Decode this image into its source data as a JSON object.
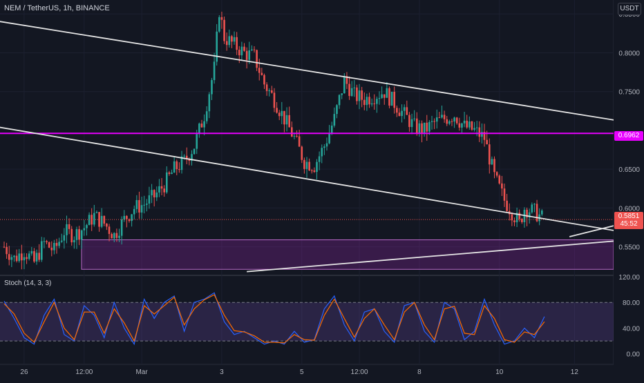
{
  "header": {
    "symbol": "NEM / TetherUS",
    "interval": "1h",
    "exchange": "BINANCE",
    "currency": "USDT"
  },
  "price_pane": {
    "y_ticks": [
      "0.8500",
      "0.8000",
      "0.7500",
      "0.6500",
      "0.6000",
      "0.5500"
    ],
    "resistance_label": "0.6962",
    "last_price_label": "0.5851",
    "countdown_label": "45:52",
    "colors": {
      "up": "#26a69a",
      "down": "#ef5350",
      "resistance": "#e800ff",
      "zone": "#9c27b0",
      "trendline": "#e6e6e6"
    }
  },
  "stoch_pane": {
    "title": "Stoch (14, 3, 3)",
    "y_ticks": [
      "120.00",
      "80.00",
      "40.00",
      "0.00"
    ],
    "colors": {
      "k": "#2962ff",
      "d": "#ff6d00",
      "band": "#7e57c2"
    }
  },
  "x_axis": {
    "labels": [
      "26",
      "12:00",
      "Mar",
      "3",
      "5",
      "12:00",
      "8",
      "10",
      "12"
    ]
  },
  "chart_data": [
    {
      "type": "candlestick",
      "title": "NEM / TetherUS, 1h, BINANCE",
      "y_unit": "USDT",
      "ylim": [
        0.515,
        0.868
      ],
      "x_tick_labels": [
        "26",
        "12:00",
        "Mar",
        "3",
        "5",
        "12:00",
        "8",
        "10",
        "12"
      ],
      "y_tick_labels": [
        "0.8500",
        "0.8000",
        "0.7500",
        "0.6500",
        "0.6000",
        "0.5500"
      ],
      "close_path": [
        [
          0.0,
          0.55
        ],
        [
          4.0,
          0.535
        ],
        [
          8.0,
          0.545
        ],
        [
          12.0,
          0.53
        ],
        [
          16.0,
          0.555
        ],
        [
          20.0,
          0.545
        ],
        [
          24.0,
          0.57
        ],
        [
          28.0,
          0.565
        ],
        [
          32.0,
          0.575
        ],
        [
          36.0,
          0.59
        ],
        [
          40.0,
          0.58
        ],
        [
          44.0,
          0.565
        ],
        [
          48.0,
          0.585
        ],
        [
          52.0,
          0.6
        ],
        [
          56.0,
          0.605
        ],
        [
          60.0,
          0.615
        ],
        [
          64.0,
          0.63
        ],
        [
          68.0,
          0.65
        ],
        [
          72.0,
          0.66
        ],
        [
          76.0,
          0.68
        ],
        [
          80.0,
          0.72
        ],
        [
          84.0,
          0.78
        ],
        [
          86.0,
          0.855
        ],
        [
          88.0,
          0.82
        ],
        [
          92.0,
          0.81
        ],
        [
          96.0,
          0.8
        ],
        [
          100.0,
          0.795
        ],
        [
          104.0,
          0.76
        ],
        [
          108.0,
          0.74
        ],
        [
          112.0,
          0.715
        ],
        [
          116.0,
          0.69
        ],
        [
          120.0,
          0.66
        ],
        [
          124.0,
          0.655
        ],
        [
          128.0,
          0.68
        ],
        [
          132.0,
          0.715
        ],
        [
          136.0,
          0.765
        ],
        [
          140.0,
          0.745
        ],
        [
          144.0,
          0.74
        ],
        [
          148.0,
          0.745
        ],
        [
          152.0,
          0.75
        ],
        [
          156.0,
          0.735
        ],
        [
          160.0,
          0.72
        ],
        [
          164.0,
          0.705
        ],
        [
          168.0,
          0.7
        ],
        [
          172.0,
          0.71
        ],
        [
          176.0,
          0.715
        ],
        [
          180.0,
          0.72
        ],
        [
          184.0,
          0.705
        ],
        [
          188.0,
          0.7
        ],
        [
          192.0,
          0.69
        ],
        [
          196.0,
          0.64
        ],
        [
          200.0,
          0.61
        ],
        [
          204.0,
          0.59
        ],
        [
          206.0,
          0.58
        ],
        [
          208.0,
          0.6
        ],
        [
          212.0,
          0.595
        ],
        [
          216.0,
          0.585
        ]
      ],
      "candle_count": 216,
      "annotations": {
        "horizontal_resistance": 0.6962,
        "last_price": 0.5851,
        "demand_zone": [
          0.521,
          0.559
        ],
        "trendlines": [
          {
            "name": "upper channel",
            "from": [
              -34,
              0.857
            ],
            "to": [
              291,
              0.689
            ]
          },
          {
            "name": "lower channel",
            "from": [
              -61,
              0.736
            ],
            "to": [
              290,
              0.546
            ]
          },
          {
            "name": "rising support",
            "from": [
              97,
              0.518
            ],
            "to": [
              291,
              0.57
            ]
          },
          {
            "name": "breakout ray",
            "from": [
              226,
              0.563
            ],
            "to": [
              290,
              0.614
            ]
          }
        ]
      }
    },
    {
      "type": "line",
      "title": "Stoch (14, 3, 3)",
      "ylim": [
        -10,
        120
      ],
      "bands": [
        20,
        80
      ],
      "series": [
        {
          "name": "%K",
          "x": [
            0,
            4,
            8,
            12,
            16,
            20,
            24,
            28,
            32,
            36,
            40,
            44,
            48,
            52,
            56,
            60,
            64,
            68,
            72,
            76,
            80,
            84,
            88,
            92,
            96,
            100,
            104,
            108,
            112,
            116,
            120,
            124,
            128,
            132,
            136,
            140,
            144,
            148,
            152,
            156,
            160,
            164,
            168,
            172,
            176,
            180,
            184,
            188,
            192,
            196,
            200,
            204,
            208,
            212,
            216
          ],
          "values": [
            82,
            55,
            25,
            15,
            60,
            85,
            30,
            20,
            75,
            60,
            25,
            80,
            40,
            15,
            85,
            55,
            80,
            90,
            35,
            80,
            85,
            95,
            50,
            30,
            35,
            25,
            15,
            20,
            15,
            35,
            18,
            22,
            70,
            90,
            45,
            20,
            65,
            70,
            35,
            18,
            75,
            80,
            35,
            18,
            80,
            70,
            22,
            35,
            85,
            45,
            15,
            20,
            40,
            25,
            58
          ]
        },
        {
          "name": "%D",
          "x": [
            0,
            4,
            8,
            12,
            16,
            20,
            24,
            28,
            32,
            36,
            40,
            44,
            48,
            52,
            56,
            60,
            64,
            68,
            72,
            76,
            80,
            84,
            88,
            92,
            96,
            100,
            104,
            108,
            112,
            116,
            120,
            124,
            128,
            132,
            136,
            140,
            144,
            148,
            152,
            156,
            160,
            164,
            168,
            172,
            176,
            180,
            184,
            188,
            192,
            196,
            200,
            204,
            208,
            212,
            216
          ],
          "values": [
            78,
            62,
            32,
            18,
            50,
            80,
            40,
            22,
            65,
            65,
            32,
            70,
            48,
            20,
            75,
            62,
            75,
            88,
            45,
            70,
            84,
            92,
            60,
            36,
            34,
            28,
            18,
            18,
            17,
            30,
            22,
            21,
            60,
            85,
            55,
            26,
            55,
            70,
            45,
            22,
            65,
            80,
            45,
            22,
            70,
            74,
            32,
            30,
            75,
            55,
            22,
            18,
            34,
            30,
            50
          ]
        }
      ]
    }
  ]
}
